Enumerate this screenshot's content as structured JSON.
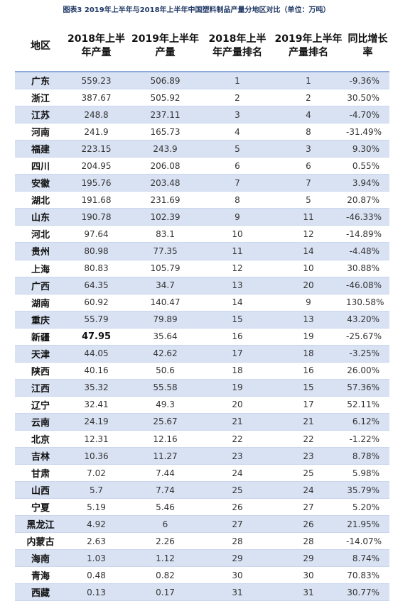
{
  "caption": "图表3   2019年上半年与2018年上半年中国塑料制品产量分地区对比（单位：万吨）",
  "headers": [
    "地区",
    "2018年上半年产量",
    "2019年上半年产量",
    "2018年上半年产量排名",
    "2019年上半年产量排名",
    "同比增长率"
  ],
  "rows": [
    [
      "广东",
      "559.23",
      "506.89",
      "1",
      "1",
      "-9.36%"
    ],
    [
      "浙江",
      "387.67",
      "505.92",
      "2",
      "2",
      "30.50%"
    ],
    [
      "江苏",
      "248.8",
      "237.11",
      "3",
      "4",
      "-4.70%"
    ],
    [
      "河南",
      "241.9",
      "165.73",
      "4",
      "8",
      "-31.49%"
    ],
    [
      "福建",
      "223.15",
      "243.9",
      "5",
      "3",
      "9.30%"
    ],
    [
      "四川",
      "204.95",
      "206.08",
      "6",
      "6",
      "0.55%"
    ],
    [
      "安徽",
      "195.76",
      "203.48",
      "7",
      "7",
      "3.94%"
    ],
    [
      "湖北",
      "191.68",
      "231.69",
      "8",
      "5",
      "20.87%"
    ],
    [
      "山东",
      "190.78",
      "102.39",
      "9",
      "11",
      "-46.33%"
    ],
    [
      "河北",
      "97.64",
      "83.1",
      "10",
      "12",
      "-14.89%"
    ],
    [
      "贵州",
      "80.98",
      "77.35",
      "11",
      "14",
      "-4.48%"
    ],
    [
      "上海",
      "80.83",
      "105.79",
      "12",
      "10",
      "30.88%"
    ],
    [
      "广西",
      "64.35",
      "34.7",
      "13",
      "20",
      "-46.08%"
    ],
    [
      "湖南",
      "60.92",
      "140.47",
      "14",
      "9",
      "130.58%"
    ],
    [
      "重庆",
      "55.79",
      "79.89",
      "15",
      "13",
      "43.20%"
    ],
    [
      "新疆",
      "47.95",
      "35.64",
      "16",
      "19",
      "-25.67%"
    ],
    [
      "天津",
      "44.05",
      "42.62",
      "17",
      "18",
      "-3.25%"
    ],
    [
      "陕西",
      "40.16",
      "50.6",
      "18",
      "16",
      "26.00%"
    ],
    [
      "江西",
      "35.32",
      "55.58",
      "19",
      "15",
      "57.36%"
    ],
    [
      "辽宁",
      "32.41",
      "49.3",
      "20",
      "17",
      "52.11%"
    ],
    [
      "云南",
      "24.19",
      "25.67",
      "21",
      "21",
      "6.12%"
    ],
    [
      "北京",
      "12.31",
      "12.16",
      "22",
      "22",
      "-1.22%"
    ],
    [
      "吉林",
      "10.36",
      "11.27",
      "23",
      "23",
      "8.78%"
    ],
    [
      "甘肃",
      "7.02",
      "7.44",
      "24",
      "25",
      "5.98%"
    ],
    [
      "山西",
      "5.7",
      "7.74",
      "25",
      "24",
      "35.79%"
    ],
    [
      "宁夏",
      "5.19",
      "5.46",
      "26",
      "27",
      "5.20%"
    ],
    [
      "黑龙江",
      "4.92",
      "6",
      "27",
      "26",
      "21.95%"
    ],
    [
      "内蒙古",
      "2.63",
      "2.26",
      "28",
      "28",
      "-14.07%"
    ],
    [
      "海南",
      "1.03",
      "1.12",
      "29",
      "29",
      "8.74%"
    ],
    [
      "青海",
      "0.48",
      "0.82",
      "30",
      "30",
      "70.83%"
    ],
    [
      "西藏",
      "0.13",
      "0.17",
      "31",
      "31",
      "30.77%"
    ]
  ],
  "emphasized_cell": {
    "row": 15,
    "col": 1
  },
  "colors": {
    "band": "#d9e2f3",
    "header_rule": "#8eaadb",
    "caption": "#1f3864"
  }
}
